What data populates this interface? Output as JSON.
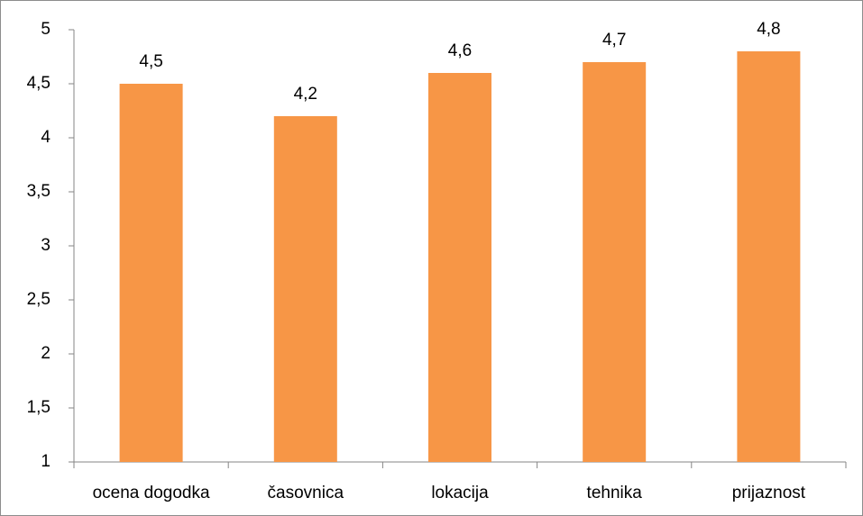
{
  "chart_data": {
    "type": "bar",
    "categories": [
      "ocena dogodka",
      "časovnica",
      "lokacija",
      "tehnika",
      "prijaznost"
    ],
    "values": [
      4.5,
      4.2,
      4.6,
      4.7,
      4.8
    ],
    "value_labels": [
      "4,5",
      "4,2",
      "4,6",
      "4,7",
      "4,8"
    ],
    "color": "#f79646",
    "ylim": [
      1,
      5
    ],
    "yticks": [
      1,
      {
        "value": 1.5,
        "label": "1,5"
      },
      2,
      {
        "value": 2.5,
        "label": "2,5"
      },
      3,
      {
        "value": 3.5,
        "label": "3,5"
      },
      4,
      {
        "value": 4.5,
        "label": "4,5"
      },
      5
    ],
    "grid": false
  }
}
